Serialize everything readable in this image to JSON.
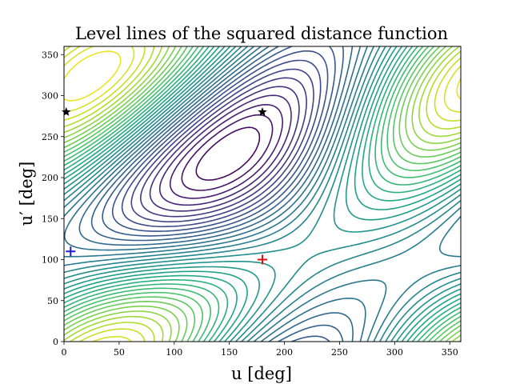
{
  "chart_data": {
    "type": "contour",
    "title": "Level lines of the squared distance function",
    "xlabel": "u [deg]",
    "ylabel": "u′ [deg]",
    "xlim": [
      0,
      360
    ],
    "ylim": [
      0,
      360
    ],
    "xticks": [
      0,
      50,
      100,
      150,
      200,
      250,
      300,
      350
    ],
    "yticks": [
      0,
      50,
      100,
      150,
      200,
      250,
      300,
      350
    ],
    "colormap": "viridis",
    "grid": false,
    "markers": [
      {
        "kind": "plus",
        "color": "#1f1fd6",
        "x": 6,
        "y": 110
      },
      {
        "kind": "plus",
        "color": "#e01010",
        "x": 180,
        "y": 100
      },
      {
        "kind": "star",
        "color": "#000000",
        "x": 2,
        "y": 280
      },
      {
        "kind": "star",
        "color": "#000000",
        "x": 180,
        "y": 280
      }
    ]
  }
}
